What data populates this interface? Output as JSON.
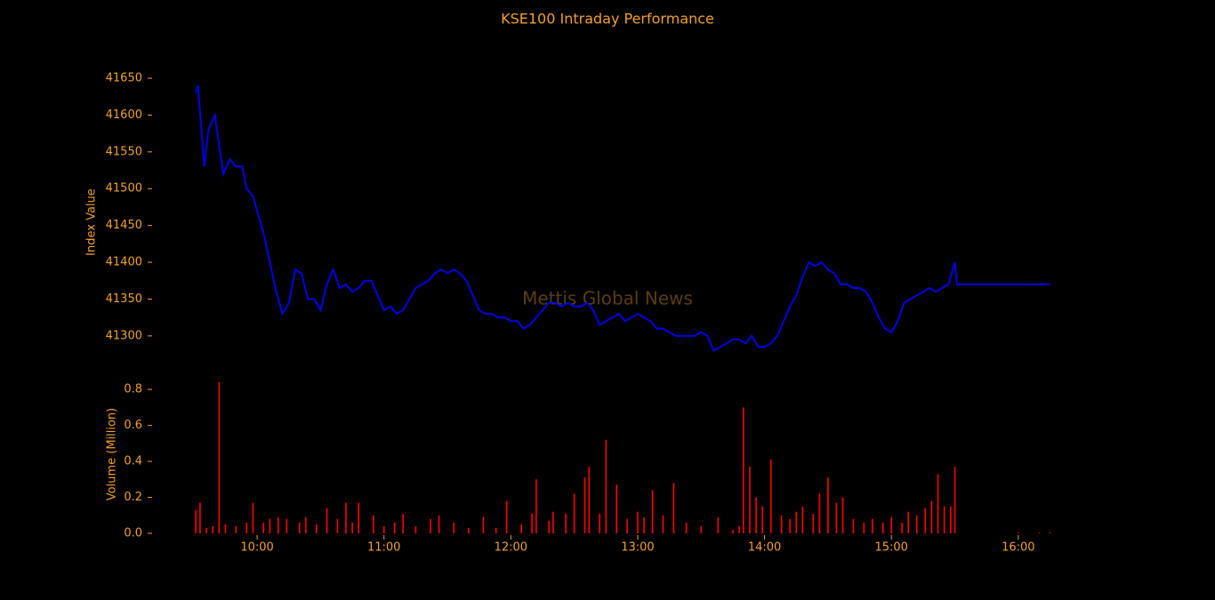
{
  "chart_data": [
    {
      "type": "line",
      "title": "KSE100 Intraday Performance",
      "ylabel": "Index Value",
      "watermark": "Mettis Global News",
      "color": "#0000e6",
      "x": [
        "09:31",
        "09:32",
        "09:35",
        "09:37",
        "09:40",
        "09:42",
        "09:44",
        "09:47",
        "09:50",
        "09:53",
        "09:55",
        "09:58",
        "10:00",
        "10:03",
        "10:06",
        "10:09",
        "10:12",
        "10:15",
        "10:18",
        "10:21",
        "10:24",
        "10:27",
        "10:30",
        "10:33",
        "10:36",
        "10:39",
        "10:42",
        "10:45",
        "10:48",
        "10:51",
        "10:54",
        "10:57",
        "11:00",
        "11:03",
        "11:06",
        "11:09",
        "11:12",
        "11:15",
        "11:18",
        "11:21",
        "11:24",
        "11:27",
        "11:30",
        "11:33",
        "11:36",
        "11:39",
        "11:42",
        "11:45",
        "11:48",
        "11:51",
        "11:54",
        "11:57",
        "12:00",
        "12:03",
        "12:06",
        "12:09",
        "12:12",
        "12:15",
        "12:18",
        "12:21",
        "12:24",
        "12:27",
        "12:30",
        "12:33",
        "12:36",
        "12:39",
        "12:42",
        "12:45",
        "12:48",
        "12:51",
        "12:54",
        "12:57",
        "13:00",
        "13:03",
        "13:06",
        "13:09",
        "13:12",
        "13:15",
        "13:18",
        "13:21",
        "13:24",
        "13:27",
        "13:30",
        "13:33",
        "13:36",
        "13:39",
        "13:42",
        "13:45",
        "13:48",
        "13:51",
        "13:54",
        "13:57",
        "14:00",
        "14:03",
        "14:06",
        "14:09",
        "14:12",
        "14:15",
        "14:18",
        "14:21",
        "14:24",
        "14:27",
        "14:30",
        "14:33",
        "14:36",
        "14:39",
        "14:42",
        "14:45",
        "14:48",
        "14:51",
        "14:54",
        "14:57",
        "15:00",
        "15:03",
        "15:06",
        "15:09",
        "15:12",
        "15:15",
        "15:18",
        "15:21",
        "15:24",
        "15:27",
        "15:30",
        "15:31",
        "16:15"
      ],
      "values": [
        41630,
        41640,
        41530,
        41580,
        41600,
        41560,
        41520,
        41540,
        41530,
        41530,
        41500,
        41490,
        41470,
        41440,
        41400,
        41360,
        41330,
        41345,
        41390,
        41385,
        41350,
        41350,
        41335,
        41370,
        41390,
        41365,
        41370,
        41360,
        41365,
        41375,
        41375,
        41355,
        41335,
        41340,
        41330,
        41335,
        41350,
        41365,
        41370,
        41375,
        41385,
        41390,
        41385,
        41390,
        41385,
        41375,
        41355,
        41335,
        41330,
        41330,
        41325,
        41325,
        41320,
        41320,
        41310,
        41315,
        41325,
        41335,
        41345,
        41345,
        41340,
        41345,
        41340,
        41340,
        41345,
        41335,
        41315,
        41320,
        41325,
        41330,
        41320,
        41325,
        41330,
        41325,
        41320,
        41310,
        41310,
        41305,
        41300,
        41300,
        41300,
        41300,
        41305,
        41300,
        41280,
        41285,
        41290,
        41295,
        41295,
        41290,
        41300,
        41285,
        41285,
        41290,
        41300,
        41320,
        41340,
        41355,
        41380,
        41400,
        41395,
        41400,
        41390,
        41385,
        41370,
        41370,
        41365,
        41365,
        41360,
        41345,
        41325,
        41310,
        41305,
        41320,
        41345,
        41350,
        41355,
        41360,
        41365,
        41360,
        41365,
        41370,
        41400,
        41370,
        41370
      ],
      "xlim": [
        "09:12",
        "16:19"
      ],
      "ylim": [
        41260,
        41665
      ],
      "yticks": [
        41300,
        41350,
        41400,
        41450,
        41500,
        41550,
        41600,
        41650
      ]
    },
    {
      "type": "bar",
      "ylabel": "Volume (Million)",
      "color": "#ff0000",
      "x": [
        "09:31",
        "09:33",
        "09:36",
        "09:39",
        "09:42",
        "09:45",
        "09:50",
        "09:55",
        "09:58",
        "10:03",
        "10:06",
        "10:10",
        "10:14",
        "10:20",
        "10:23",
        "10:28",
        "10:33",
        "10:38",
        "10:42",
        "10:45",
        "10:48",
        "10:55",
        "11:00",
        "11:05",
        "11:09",
        "11:15",
        "11:22",
        "11:26",
        "11:33",
        "11:40",
        "11:47",
        "11:53",
        "11:58",
        "12:05",
        "12:10",
        "12:12",
        "12:18",
        "12:20",
        "12:26",
        "12:30",
        "12:35",
        "12:37",
        "12:42",
        "12:45",
        "12:50",
        "12:55",
        "13:00",
        "13:03",
        "13:07",
        "13:12",
        "13:17",
        "13:23",
        "13:30",
        "13:38",
        "13:45",
        "13:48",
        "13:50",
        "13:53",
        "13:56",
        "13:59",
        "14:03",
        "14:08",
        "14:12",
        "14:15",
        "14:18",
        "14:23",
        "14:26",
        "14:30",
        "14:34",
        "14:37",
        "14:42",
        "14:47",
        "14:51",
        "14:56",
        "15:00",
        "15:05",
        "15:08",
        "15:12",
        "15:16",
        "15:19",
        "15:22",
        "15:25",
        "15:28",
        "15:30",
        "16:00",
        "16:10",
        "16:15"
      ],
      "values": [
        0.13,
        0.17,
        0.03,
        0.04,
        0.84,
        0.05,
        0.04,
        0.06,
        0.17,
        0.06,
        0.08,
        0.09,
        0.08,
        0.06,
        0.09,
        0.05,
        0.14,
        0.08,
        0.17,
        0.06,
        0.17,
        0.1,
        0.04,
        0.06,
        0.11,
        0.04,
        0.08,
        0.1,
        0.06,
        0.03,
        0.09,
        0.03,
        0.18,
        0.05,
        0.11,
        0.3,
        0.07,
        0.12,
        0.11,
        0.22,
        0.31,
        0.37,
        0.11,
        0.52,
        0.27,
        0.08,
        0.12,
        0.09,
        0.24,
        0.1,
        0.28,
        0.06,
        0.04,
        0.09,
        0.02,
        0.04,
        0.7,
        0.37,
        0.2,
        0.15,
        0.41,
        0.1,
        0.08,
        0.12,
        0.15,
        0.11,
        0.22,
        0.31,
        0.17,
        0.2,
        0.08,
        0.06,
        0.08,
        0.06,
        0.09,
        0.06,
        0.12,
        0.1,
        0.14,
        0.18,
        0.33,
        0.15,
        0.15,
        0.37,
        0.005,
        0.005,
        0.005
      ],
      "xlim": [
        "09:12",
        "16:19"
      ],
      "ylim": [
        0,
        0.85
      ],
      "yticks": [
        {
          "value": 0,
          "label": "0.0"
        },
        0.2,
        0.4,
        0.6,
        0.8
      ],
      "xticks": [
        "10:00",
        "11:00",
        "12:00",
        "13:00",
        "14:00",
        "15:00",
        "16:00"
      ]
    }
  ]
}
